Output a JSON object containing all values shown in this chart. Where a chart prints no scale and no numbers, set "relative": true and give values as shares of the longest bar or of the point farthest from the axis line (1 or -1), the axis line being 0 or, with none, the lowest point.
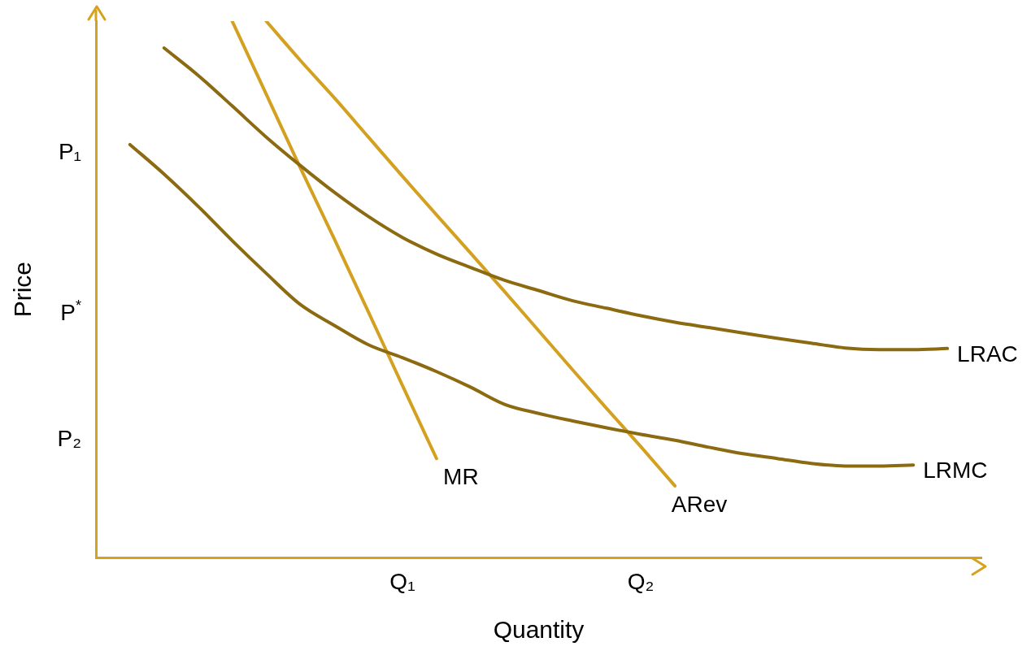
{
  "chart_data": {
    "type": "line",
    "relative": true,
    "xlabel": "Quantity",
    "ylabel": "Price",
    "legend": false,
    "grid": false,
    "marker": "none",
    "line_style": "solid",
    "categories": [
      null,
      null,
      null,
      null,
      null,
      null,
      null,
      null,
      null,
      "Q₁",
      null,
      null,
      null,
      null,
      null,
      null,
      "Q₂",
      null,
      null,
      null,
      null,
      null,
      null,
      null,
      null,
      null,
      null
    ],
    "series": [
      {
        "name": "LRAC",
        "color": "#8c6a12",
        "values": [
          null,
          null,
          0.95,
          0.899,
          0.842,
          0.784,
          0.731,
          0.681,
          0.636,
          0.597,
          0.566,
          0.541,
          0.517,
          0.498,
          0.479,
          0.465,
          0.451,
          0.439,
          0.429,
          0.419,
          0.409,
          0.4,
          0.391,
          0.388,
          0.388,
          0.39,
          null
        ]
      },
      {
        "name": "LRMC",
        "color": "#8c6a12",
        "values": [
          null,
          0.77,
          0.715,
          0.655,
          0.591,
          0.53,
          0.472,
          0.433,
          0.397,
          0.373,
          0.347,
          0.318,
          0.286,
          0.269,
          0.255,
          0.242,
          0.23,
          0.219,
          0.206,
          0.194,
          0.185,
          0.176,
          0.171,
          0.171,
          0.173,
          null,
          null
        ]
      },
      {
        "name": "MR",
        "color": "#d4a020",
        "values": [
          null,
          null,
          null,
          null,
          1,
          0.864,
          0.727,
          0.594,
          0.458,
          0.321,
          0.185,
          null,
          null,
          null,
          null,
          null,
          null,
          null,
          null,
          null,
          null,
          null,
          null,
          null,
          null,
          null,
          null
        ]
      },
      {
        "name": "ARev",
        "color": "#d4a020",
        "values": [
          null,
          null,
          null,
          null,
          null,
          1,
          0.927,
          0.857,
          0.784,
          0.711,
          0.639,
          0.568,
          0.496,
          0.423,
          0.35,
          0.278,
          0.207,
          0.134,
          null,
          null,
          null,
          null,
          null,
          null,
          null,
          null,
          null
        ]
      }
    ],
    "annotations": [
      "P₁",
      "P$^{*}$",
      "P₂"
    ]
  }
}
